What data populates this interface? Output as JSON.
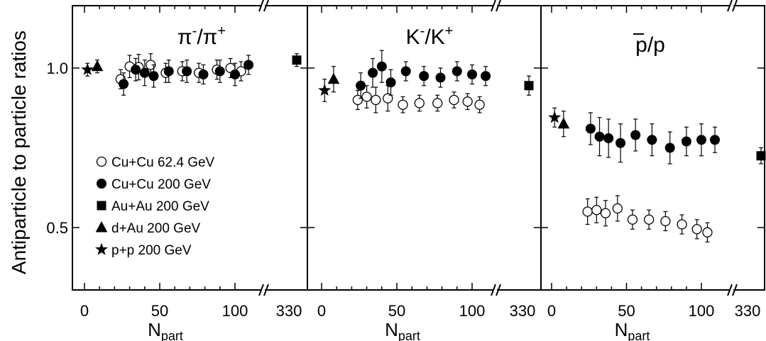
{
  "chart_data": {
    "type": "scatter",
    "ylabel": "Antiparticle to particle ratios",
    "ylim": [
      0.3,
      1.2
    ],
    "yticks": [
      {
        "v": 0.5,
        "label": "0.5"
      },
      {
        "v": 1.0,
        "label": "1.0"
      }
    ],
    "xlabel_main": "N",
    "xlabel_sub": "part",
    "xticks": [
      {
        "v": 0,
        "label": "0"
      },
      {
        "v": 50,
        "label": "50"
      },
      {
        "v": 100,
        "label": "100"
      },
      {
        "v": 330,
        "label": "330"
      }
    ],
    "legend": [
      {
        "name": "Cu+Cu 62.4 GeV",
        "marker": "open-circle"
      },
      {
        "name": "Cu+Cu 200 GeV",
        "marker": "filled-circle"
      },
      {
        "name": "Au+Au 200 GeV",
        "marker": "filled-square"
      },
      {
        "name": "d+Au 200 GeV",
        "marker": "filled-triangle"
      },
      {
        "name": "p+p 200 GeV",
        "marker": "star"
      }
    ],
    "panels": [
      {
        "title_main": "π",
        "title_sup1": "-",
        "title_mid": "/π",
        "title_sup2": "+",
        "series": {
          "cucu62": [
            [
              24,
              0.965,
              0.03
            ],
            [
              30,
              1.005,
              0.035
            ],
            [
              36,
              1.003,
              0.04
            ],
            [
              44,
              1.01,
              0.035
            ],
            [
              54,
              0.985,
              0.03
            ],
            [
              65,
              0.99,
              0.03
            ],
            [
              76,
              0.985,
              0.03
            ],
            [
              88,
              0.995,
              0.03
            ],
            [
              97,
              1.0,
              0.03
            ],
            [
              104,
              0.99,
              0.03
            ]
          ],
          "cucu200": [
            [
              26,
              0.95,
              0.035
            ],
            [
              34,
              0.995,
              0.035
            ],
            [
              40,
              0.985,
              0.04
            ],
            [
              46,
              0.975,
              0.035
            ],
            [
              56,
              0.99,
              0.035
            ],
            [
              68,
              0.99,
              0.035
            ],
            [
              79,
              0.98,
              0.03
            ],
            [
              90,
              0.99,
              0.035
            ],
            [
              100,
              0.98,
              0.035
            ],
            [
              109,
              1.01,
              0.03
            ]
          ],
          "auau": [
            [
              330,
              1.025,
              0.02
            ]
          ],
          "dau": [
            [
              8.5,
              1.005,
              0.02
            ]
          ],
          "pp": [
            [
              2,
              0.995,
              0.02
            ]
          ]
        }
      },
      {
        "title_main": "K",
        "title_sup1": "-",
        "title_mid": "/K",
        "title_sup2": "+",
        "series": {
          "cucu62": [
            [
              24,
              0.9,
              0.03
            ],
            [
              30,
              0.91,
              0.035
            ],
            [
              36,
              0.9,
              0.04
            ],
            [
              44,
              0.905,
              0.04
            ],
            [
              54,
              0.885,
              0.025
            ],
            [
              65,
              0.89,
              0.025
            ],
            [
              77,
              0.89,
              0.025
            ],
            [
              88,
              0.9,
              0.025
            ],
            [
              97,
              0.895,
              0.025
            ],
            [
              105,
              0.885,
              0.025
            ]
          ],
          "cucu200": [
            [
              26,
              0.945,
              0.04
            ],
            [
              34,
              0.985,
              0.045
            ],
            [
              40,
              1.005,
              0.05
            ],
            [
              46,
              0.955,
              0.04
            ],
            [
              56,
              0.99,
              0.03
            ],
            [
              68,
              0.975,
              0.03
            ],
            [
              79,
              0.97,
              0.03
            ],
            [
              90,
              0.99,
              0.03
            ],
            [
              100,
              0.98,
              0.03
            ],
            [
              109,
              0.975,
              0.03
            ]
          ],
          "auau": [
            [
              330,
              0.945,
              0.03
            ]
          ],
          "dau": [
            [
              8,
              0.965,
              0.04
            ]
          ],
          "pp": [
            [
              2,
              0.93,
              0.035
            ]
          ]
        }
      },
      {
        "title_main": "p/p",
        "title_sup1": "",
        "title_mid": "",
        "title_sup2": "",
        "series": {
          "cucu62": [
            [
              24,
              0.55,
              0.04
            ],
            [
              30,
              0.555,
              0.04
            ],
            [
              36,
              0.545,
              0.04
            ],
            [
              44,
              0.56,
              0.04
            ],
            [
              54,
              0.525,
              0.03
            ],
            [
              65,
              0.525,
              0.03
            ],
            [
              76,
              0.52,
              0.03
            ],
            [
              87,
              0.51,
              0.03
            ],
            [
              97,
              0.495,
              0.03
            ],
            [
              104,
              0.485,
              0.03
            ]
          ],
          "cucu200": [
            [
              26,
              0.81,
              0.05
            ],
            [
              32,
              0.785,
              0.06
            ],
            [
              38,
              0.78,
              0.06
            ],
            [
              46,
              0.765,
              0.06
            ],
            [
              56,
              0.79,
              0.05
            ],
            [
              67,
              0.775,
              0.05
            ],
            [
              79,
              0.75,
              0.05
            ],
            [
              90,
              0.77,
              0.045
            ],
            [
              100,
              0.775,
              0.05
            ],
            [
              109,
              0.775,
              0.04
            ]
          ],
          "auau": [
            [
              330,
              0.725,
              0.025
            ]
          ],
          "dau": [
            [
              8,
              0.825,
              0.04
            ]
          ],
          "pp": [
            [
              2,
              0.845,
              0.03
            ]
          ]
        }
      }
    ]
  }
}
